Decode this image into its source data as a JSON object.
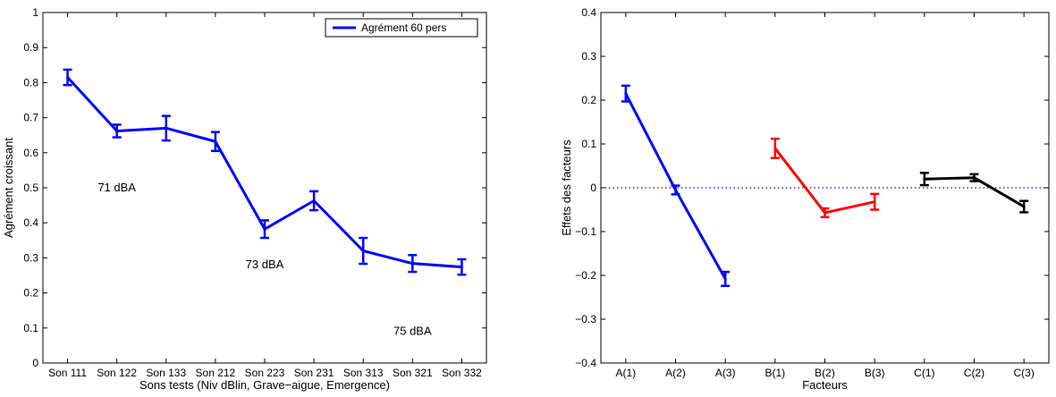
{
  "chart_data": [
    {
      "type": "line",
      "xlabel": "Sons tests (Niv dBlin, Grave−aigue, Emergence)",
      "ylabel": "Agrément croissant",
      "ylim": [
        0,
        1
      ],
      "yticks": [
        "0",
        "0.1",
        "0.2",
        "0.3",
        "0.4",
        "0.5",
        "0.6",
        "0.7",
        "0.8",
        "0.9",
        "1"
      ],
      "categories": [
        "Son 111",
        "Son 122",
        "Son 133",
        "Son 212",
        "Son 223",
        "Son 231",
        "Son 313",
        "Son 321",
        "Son 332"
      ],
      "series": [
        {
          "name": "Agrément 60 pers",
          "color": "#0000ff",
          "values": [
            0.815,
            0.662,
            0.67,
            0.632,
            0.382,
            0.463,
            0.32,
            0.284,
            0.274
          ],
          "err": [
            0.022,
            0.018,
            0.035,
            0.027,
            0.025,
            0.027,
            0.037,
            0.024,
            0.022
          ]
        }
      ],
      "legend": "top-right",
      "annotations": [
        {
          "text": "71 dBA",
          "x": 2,
          "y": 0.5
        },
        {
          "text": "73 dBA",
          "x": 5,
          "y": 0.28
        },
        {
          "text": "75 dBA",
          "x": 8,
          "y": 0.09
        }
      ]
    },
    {
      "type": "line",
      "xlabel": "Facteurs",
      "ylabel": "Effets des facteurs",
      "ylim": [
        -0.4,
        0.4
      ],
      "yticks": [
        "−0.4",
        "−0.3",
        "−0.2",
        "−0.1",
        "0",
        "0.1",
        "0.2",
        "0.3",
        "0.4"
      ],
      "categories": [
        "A(1)",
        "A(2)",
        "A(3)",
        "B(1)",
        "B(2)",
        "B(3)",
        "C(1)",
        "C(2)",
        "C(3)"
      ],
      "reference_line": 0,
      "series": [
        {
          "color": "#0000ff",
          "x": [
            1,
            2,
            3
          ],
          "values": [
            0.215,
            -0.005,
            -0.208
          ],
          "err": [
            0.018,
            0.01,
            0.016
          ]
        },
        {
          "color": "#ff0000",
          "x": [
            4,
            5,
            6
          ],
          "values": [
            0.09,
            -0.057,
            -0.032
          ],
          "err": [
            0.022,
            0.01,
            0.018
          ]
        },
        {
          "color": "#000000",
          "x": [
            7,
            8,
            9
          ],
          "values": [
            0.02,
            0.023,
            -0.043
          ],
          "err": [
            0.014,
            0.008,
            0.013
          ]
        }
      ]
    }
  ]
}
